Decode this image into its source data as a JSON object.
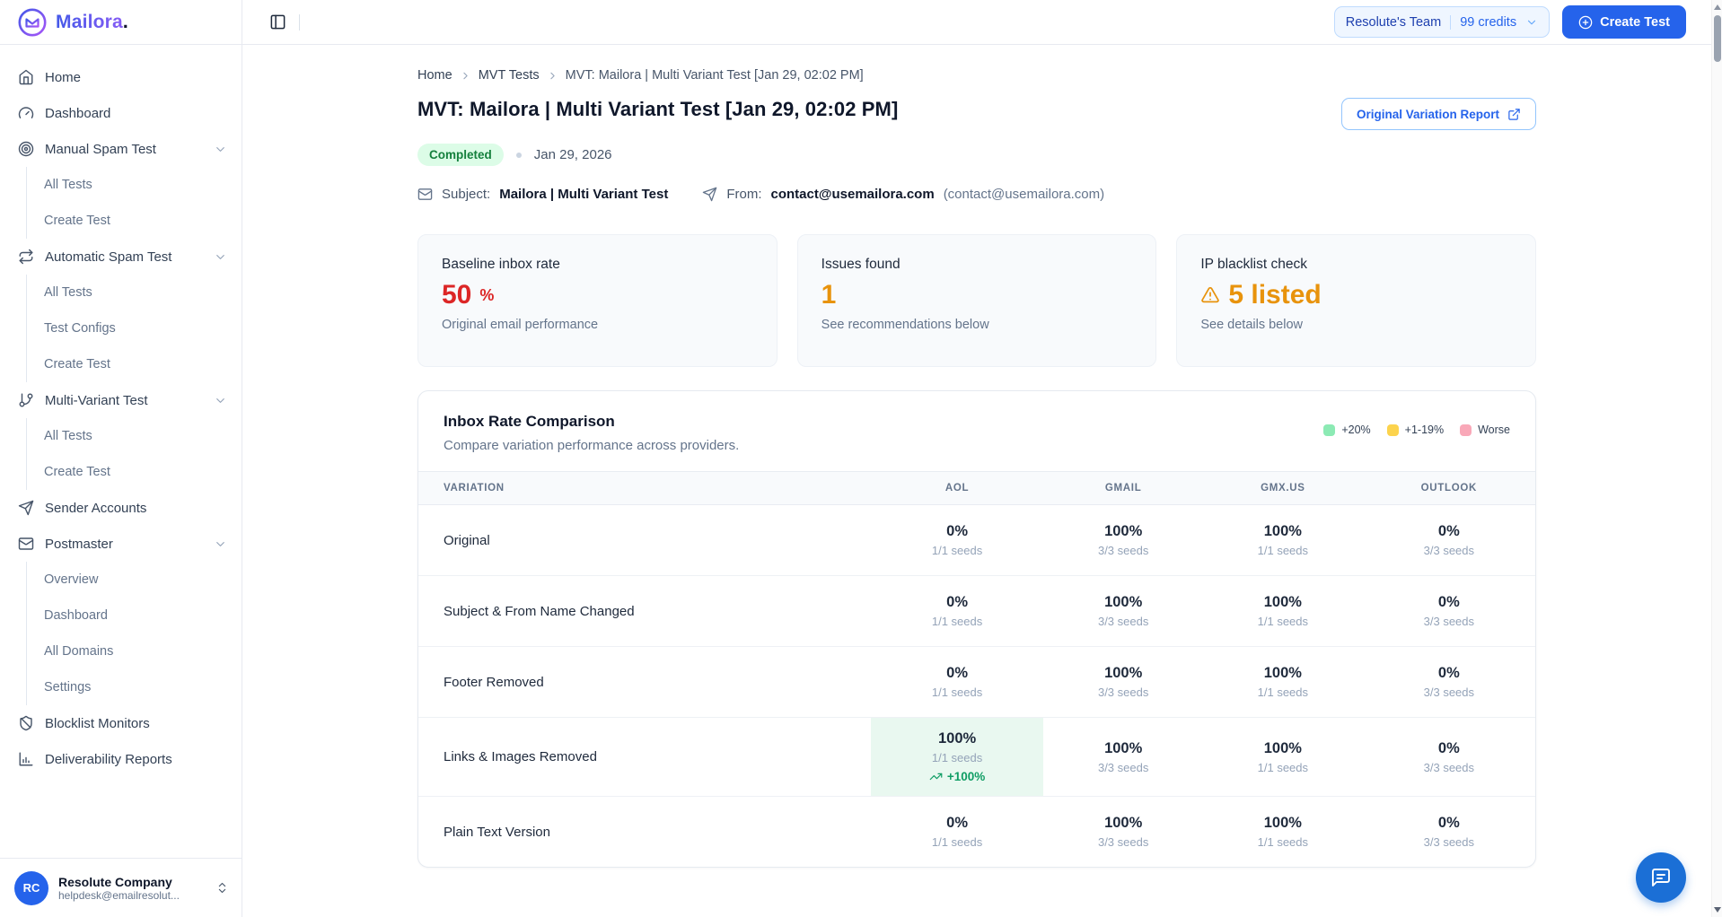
{
  "brand": {
    "name": "Mailora",
    "dot": "."
  },
  "colors": {
    "accent": "#2563eb",
    "brand_gradient_start": "#4459e8",
    "brand_gradient_end": "#8b5cf6",
    "status_completed_bg": "#dcfce7",
    "status_completed_text": "#15803d",
    "baseline_value": "#dc2626",
    "warning_value": "#e8930c",
    "delta_positive": "#0f9d64",
    "highlight_bg": "#e9f8f0"
  },
  "topbar": {
    "team_label": "Resolute's Team",
    "credits_label": "99 credits",
    "create_test_label": "Create Test"
  },
  "sidebar": {
    "items": [
      {
        "label": "Home",
        "icon": "home"
      },
      {
        "label": "Dashboard",
        "icon": "gauge"
      },
      {
        "label": "Manual Spam Test",
        "icon": "target",
        "children": [
          "All Tests",
          "Create Test"
        ]
      },
      {
        "label": "Automatic Spam Test",
        "icon": "repeat",
        "children": [
          "All Tests",
          "Test Configs",
          "Create Test"
        ]
      },
      {
        "label": "Multi-Variant Test",
        "icon": "git-branch",
        "children": [
          "All Tests",
          "Create Test"
        ]
      },
      {
        "label": "Sender Accounts",
        "icon": "send"
      },
      {
        "label": "Postmaster",
        "icon": "mail",
        "children": [
          "Overview",
          "Dashboard",
          "All Domains",
          "Settings"
        ]
      },
      {
        "label": "Blocklist Monitors",
        "icon": "shield"
      },
      {
        "label": "Deliverability Reports",
        "icon": "bar-chart"
      }
    ],
    "user": {
      "initials": "RC",
      "name": "Resolute Company",
      "email": "helpdesk@emailresolut..."
    }
  },
  "breadcrumb": {
    "items": [
      "Home",
      "MVT Tests",
      "MVT: Mailora | Multi Variant Test [Jan 29, 02:02 PM]"
    ]
  },
  "header": {
    "title": "MVT: Mailora | Multi Variant Test [Jan 29, 02:02 PM]",
    "report_button_label": "Original Variation Report",
    "status": "Completed",
    "date": "Jan 29, 2026",
    "subject_label": "Subject:",
    "subject_value": "Mailora | Multi Variant Test",
    "from_label": "From:",
    "from_value": "contact@usemailora.com",
    "from_secondary": "(contact@usemailora.com)"
  },
  "stats": [
    {
      "label": "Baseline inbox rate",
      "value": "50",
      "suffix": "%",
      "caption": "Original email performance",
      "color": "#dc2626"
    },
    {
      "label": "Issues found",
      "value": "1",
      "caption": "See recommendations below",
      "color": "#e8930c"
    },
    {
      "label": "IP blacklist check",
      "value": "5 listed",
      "caption": "See details below",
      "color": "#e8930c",
      "warning": true
    }
  ],
  "comparison": {
    "title": "Inbox Rate Comparison",
    "subtitle": "Compare variation performance across providers.",
    "legend": [
      {
        "label": "+20%",
        "color": "#8ceab4"
      },
      {
        "label": "+1-19%",
        "color": "#fcd34d"
      },
      {
        "label": "Worse",
        "color": "#f9a8b8"
      }
    ],
    "columns": [
      "VARIATION",
      "AOL",
      "GMAIL",
      "GMX.US",
      "OUTLOOK"
    ],
    "rows": [
      {
        "name": "Original",
        "cells": [
          {
            "pct": "0%",
            "seeds": "1/1 seeds"
          },
          {
            "pct": "100%",
            "seeds": "3/3 seeds"
          },
          {
            "pct": "100%",
            "seeds": "1/1 seeds"
          },
          {
            "pct": "0%",
            "seeds": "3/3 seeds"
          }
        ]
      },
      {
        "name": "Subject & From Name Changed",
        "cells": [
          {
            "pct": "0%",
            "seeds": "1/1 seeds"
          },
          {
            "pct": "100%",
            "seeds": "3/3 seeds"
          },
          {
            "pct": "100%",
            "seeds": "1/1 seeds"
          },
          {
            "pct": "0%",
            "seeds": "3/3 seeds"
          }
        ]
      },
      {
        "name": "Footer Removed",
        "cells": [
          {
            "pct": "0%",
            "seeds": "1/1 seeds"
          },
          {
            "pct": "100%",
            "seeds": "3/3 seeds"
          },
          {
            "pct": "100%",
            "seeds": "1/1 seeds"
          },
          {
            "pct": "0%",
            "seeds": "3/3 seeds"
          }
        ]
      },
      {
        "name": "Links & Images Removed",
        "cells": [
          {
            "pct": "100%",
            "seeds": "1/1 seeds",
            "delta": "+100%",
            "highlight": "#e9f8f0",
            "delta_color": "#0f9d64"
          },
          {
            "pct": "100%",
            "seeds": "3/3 seeds"
          },
          {
            "pct": "100%",
            "seeds": "1/1 seeds"
          },
          {
            "pct": "0%",
            "seeds": "3/3 seeds"
          }
        ]
      },
      {
        "name": "Plain Text Version",
        "cells": [
          {
            "pct": "0%",
            "seeds": "1/1 seeds"
          },
          {
            "pct": "100%",
            "seeds": "3/3 seeds"
          },
          {
            "pct": "100%",
            "seeds": "1/1 seeds"
          },
          {
            "pct": "0%",
            "seeds": "3/3 seeds"
          }
        ]
      }
    ]
  }
}
